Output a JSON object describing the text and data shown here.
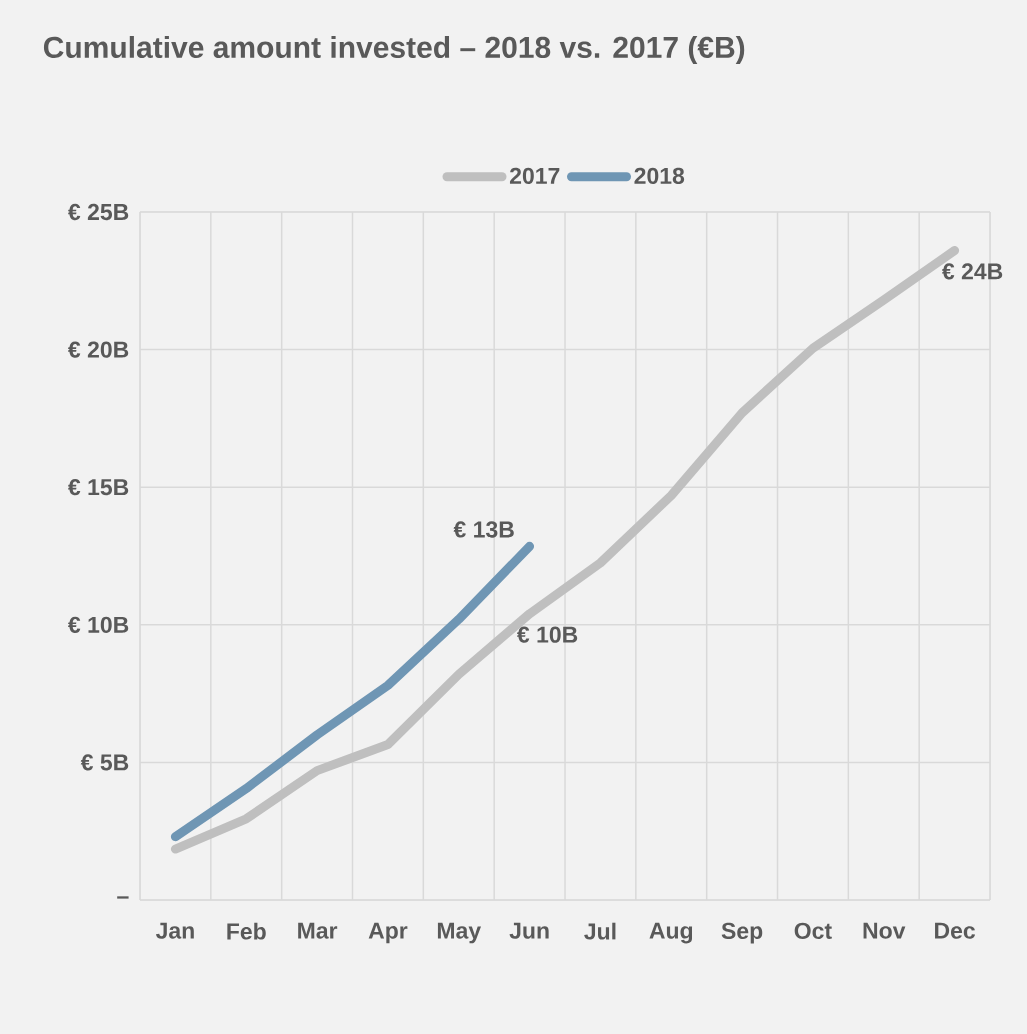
{
  "chart_data": {
    "type": "line",
    "title": "Cumulative amount invested – 2018 vs. 2017 (€B)",
    "categories": [
      "Jan",
      "Feb",
      "Mar",
      "Apr",
      "May",
      "Jun",
      "Jul",
      "Aug",
      "Sep",
      "Oct",
      "Nov",
      "Dec"
    ],
    "series": [
      {
        "name": "2017",
        "color": "#bfbfbf",
        "values": [
          1.85,
          2.95,
          4.7,
          5.65,
          8.2,
          10.4,
          12.25,
          14.7,
          17.7,
          20.05,
          21.8,
          23.6
        ],
        "value_labels": [
          null,
          null,
          null,
          null,
          null,
          "€ 10B",
          null,
          null,
          null,
          null,
          null,
          "€ 24B"
        ]
      },
      {
        "name": "2018",
        "color": "#6f96b4",
        "values": [
          2.3,
          4.05,
          6.0,
          7.8,
          10.2,
          12.85,
          null,
          null,
          null,
          null,
          null,
          null
        ],
        "value_labels": [
          null,
          null,
          null,
          null,
          null,
          "€ 13B",
          null,
          null,
          null,
          null,
          null,
          null
        ]
      }
    ],
    "ylim": [
      0,
      25
    ],
    "yticks": [
      {
        "value": 0,
        "label": "–"
      },
      {
        "value": 5,
        "label": "€ 5B"
      },
      {
        "value": 10,
        "label": "€ 10B"
      },
      {
        "value": 15,
        "label": "€ 15B"
      },
      {
        "value": 20,
        "label": "€ 20B"
      },
      {
        "value": 25,
        "label": "€ 25B"
      }
    ],
    "grid": true,
    "legend": "top",
    "marker": "none",
    "line_style": "solid"
  }
}
